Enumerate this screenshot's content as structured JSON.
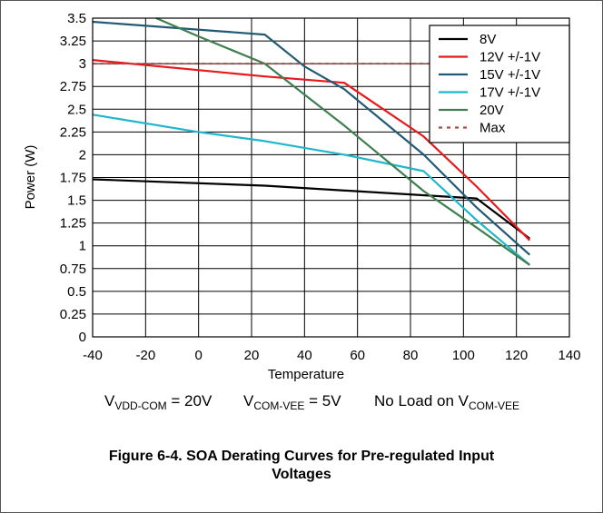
{
  "chart_data": {
    "type": "line",
    "xlabel": "Temperature",
    "ylabel": "Power (W)",
    "xlim": [
      -40,
      140
    ],
    "ylim": [
      0,
      3.5
    ],
    "x_ticks": [
      "-40",
      "-20",
      "0",
      "20",
      "40",
      "60",
      "80",
      "100",
      "120",
      "140"
    ],
    "y_ticks": [
      "0",
      "0.25",
      "0.5",
      "0.75",
      "1",
      "1.25",
      "1.5",
      "1.75",
      "2",
      "2.25",
      "2.5",
      "2.75",
      "3",
      "3.25",
      "3.5"
    ],
    "grid": true,
    "legend": "top-right",
    "series": [
      {
        "name": "8V",
        "color": "#000000",
        "dash": false,
        "points": [
          [
            -40,
            1.73
          ],
          [
            25,
            1.66
          ],
          [
            105,
            1.52
          ],
          [
            125,
            1.08
          ]
        ]
      },
      {
        "name": "12V +/-1V",
        "color": "#e8191c",
        "dash": false,
        "points": [
          [
            -40,
            3.04
          ],
          [
            25,
            2.86
          ],
          [
            55,
            2.79
          ],
          [
            85,
            2.2
          ],
          [
            105,
            1.65
          ],
          [
            125,
            1.06
          ]
        ]
      },
      {
        "name": "15V +/-1V",
        "color": "#215a75",
        "dash": false,
        "points": [
          [
            -40,
            3.46
          ],
          [
            25,
            3.32
          ],
          [
            40,
            2.97
          ],
          [
            55,
            2.72
          ],
          [
            85,
            2.0
          ],
          [
            105,
            1.42
          ],
          [
            125,
            0.9
          ]
        ]
      },
      {
        "name": "17V +/-1V",
        "color": "#1fb7c9",
        "dash": false,
        "points": [
          [
            -40,
            2.44
          ],
          [
            0,
            2.25
          ],
          [
            25,
            2.15
          ],
          [
            55,
            2.0
          ],
          [
            85,
            1.82
          ],
          [
            105,
            1.28
          ],
          [
            125,
            0.79
          ]
        ]
      },
      {
        "name": "20V",
        "color": "#3e7f4e",
        "dash": false,
        "points": [
          [
            -16,
            3.5
          ],
          [
            0,
            3.3
          ],
          [
            25,
            3.0
          ],
          [
            55,
            2.32
          ],
          [
            85,
            1.6
          ],
          [
            105,
            1.2
          ],
          [
            125,
            0.79
          ]
        ]
      },
      {
        "name": "Max",
        "color": "#b04848",
        "dash": true,
        "points": [
          [
            -40,
            3.0
          ],
          [
            125,
            3.0
          ]
        ]
      }
    ]
  },
  "conditions": {
    "vdd_label": "V",
    "vdd_sub": "VDD-COM",
    "vdd_value": " = 20V",
    "vee_label": "V",
    "vee_sub": "COM-VEE",
    "vee_value": " = 5V",
    "noload_text": "No Load on V",
    "noload_sub": "COM-VEE"
  },
  "caption": {
    "line1": "Figure 6-4. SOA Derating Curves for Pre-regulated Input",
    "line2": "Voltages"
  }
}
